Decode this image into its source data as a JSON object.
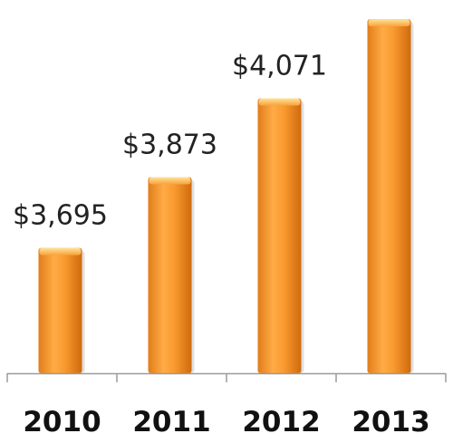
{
  "chart_data": {
    "type": "bar",
    "categories": [
      "2010",
      "2011",
      "2012",
      "2013"
    ],
    "values": [
      3695,
      3873,
      4071,
      4270
    ],
    "data_labels": [
      "$3,695",
      "$3,873",
      "$4,071",
      ""
    ],
    "title": "",
    "xlabel": "",
    "ylabel": "",
    "ylim": [
      3380,
      4300
    ],
    "grid": false,
    "legend": "none",
    "bar_color": "#f79a2e",
    "bar_color_light": "#ffc56a",
    "bar_color_dark": "#d46f0c",
    "axis_color": "#9a9a9a"
  }
}
